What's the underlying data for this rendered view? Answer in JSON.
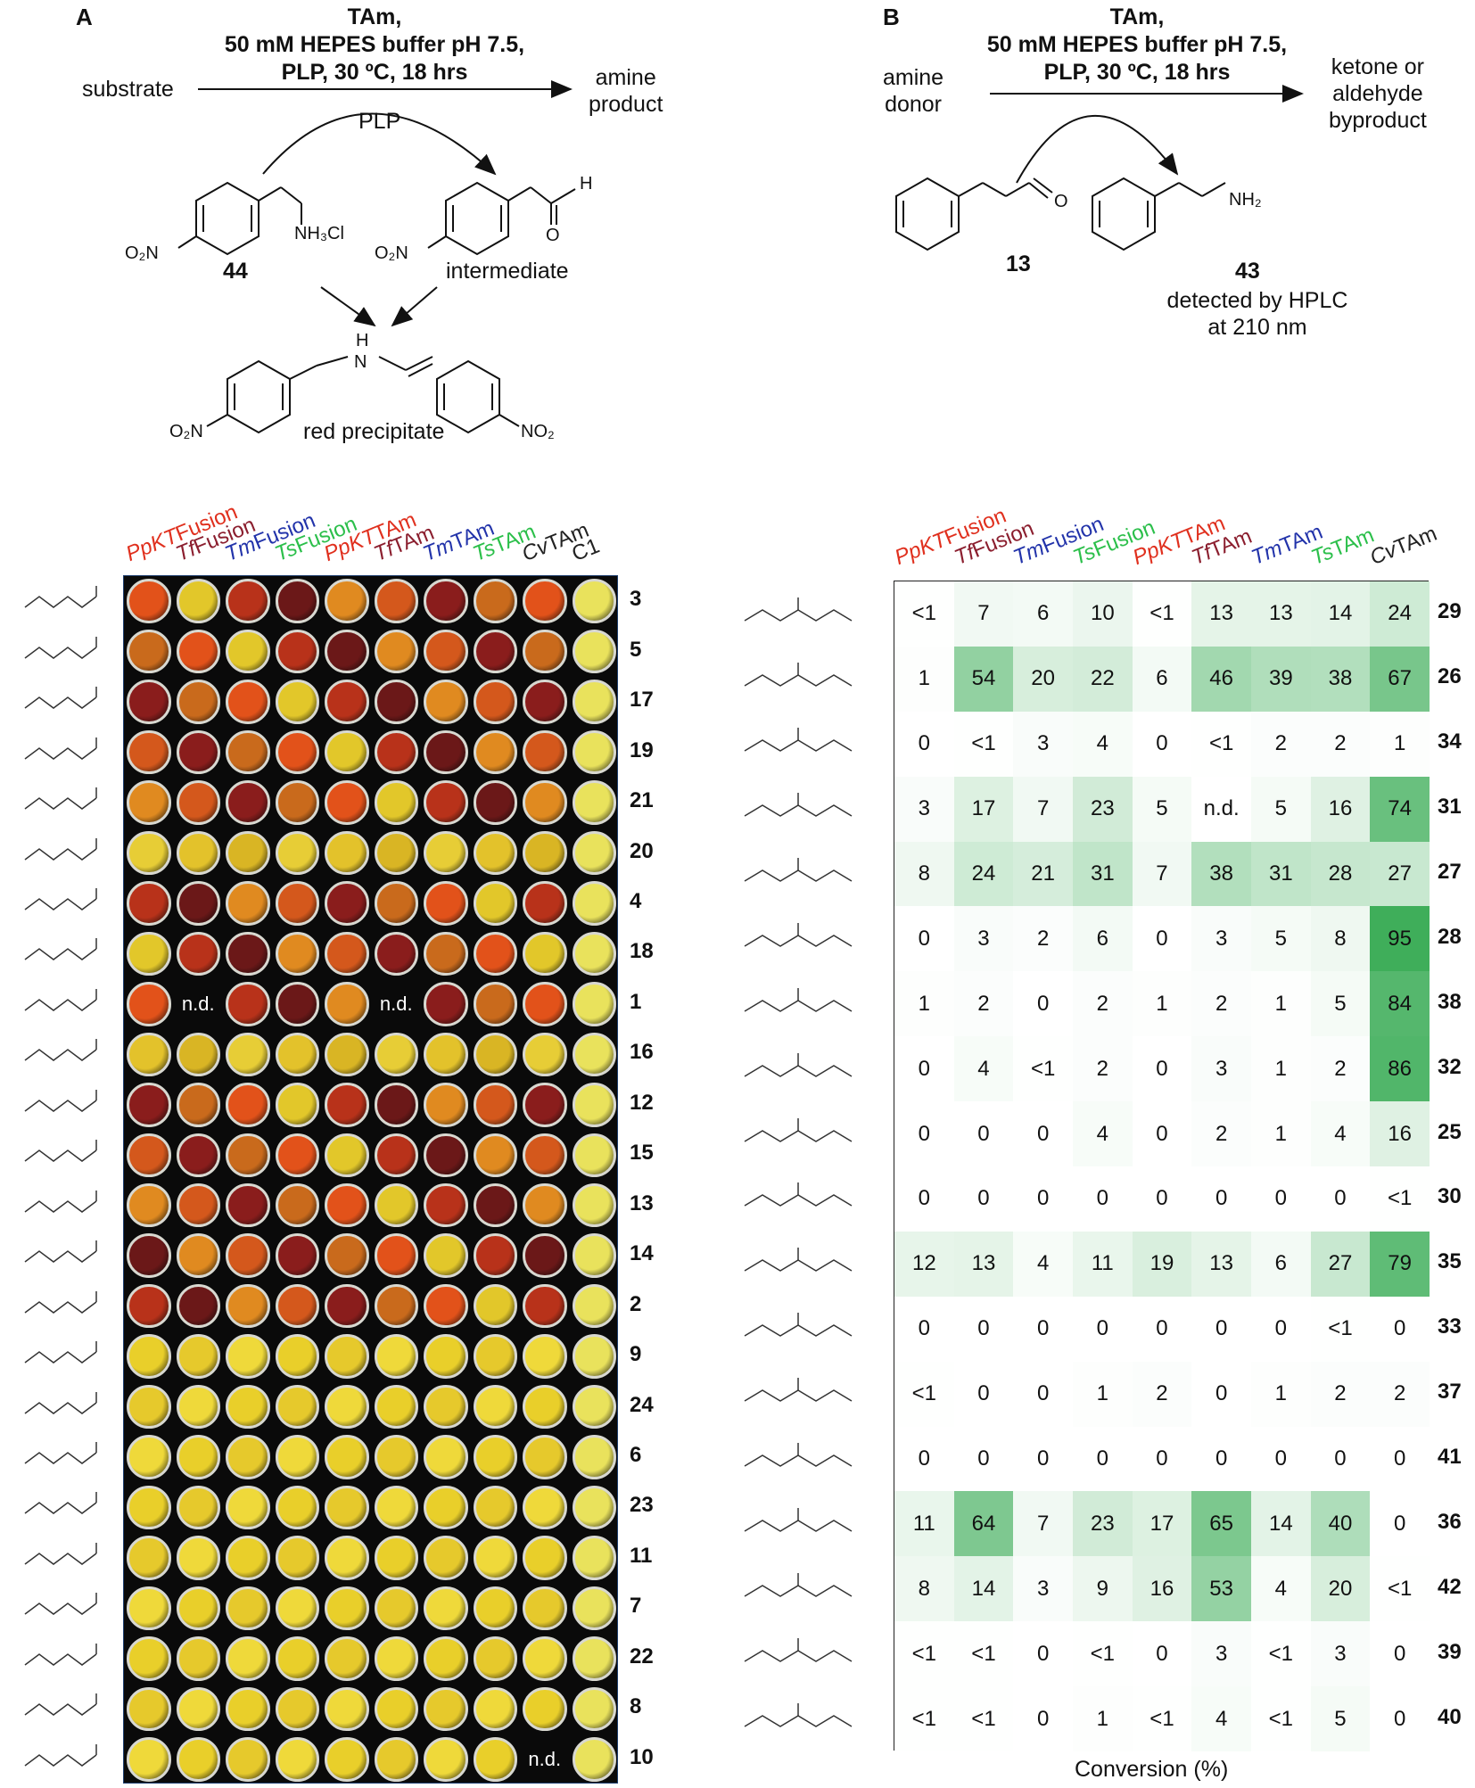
{
  "panelA": {
    "letter": "A",
    "conditions": [
      "TAm,",
      "50 mM HEPES buffer pH 7.5,",
      "PLP, 30 ºC, 18 hrs"
    ],
    "substrate_label": "substrate",
    "product_label": [
      "amine",
      "product"
    ],
    "cofactor_label": "PLP",
    "donor_compound": "44",
    "intermediate_label": "intermediate",
    "precipitate_label": "red precipitate"
  },
  "panelB": {
    "letter": "B",
    "conditions": [
      "TAm,",
      "50 mM HEPES buffer pH 7.5,",
      "PLP, 30 ºC, 18 hrs"
    ],
    "donor_label": [
      "amine",
      "donor"
    ],
    "byproduct_label": [
      "ketone or",
      "aldehyde",
      "byproduct"
    ],
    "acceptor_compound": "13",
    "product_compound": "43",
    "detection_label": [
      "detected by HPLC",
      "at 210 nm"
    ]
  },
  "colors": {
    "red": "#e0301e",
    "maroon": "#8b1e2e",
    "blue": "#2233aa",
    "green": "#2bbf4a",
    "black": "#222222",
    "heat_high": "#3fae5a",
    "plate_bg": "#0a0a0a"
  },
  "plate": {
    "columns": [
      {
        "label": "PpKTFusion",
        "color": "red",
        "italic": "PpKT",
        "rest": "Fusion"
      },
      {
        "label": "TfFusion",
        "color": "maroon",
        "italic": "Tf",
        "rest": "Fusion"
      },
      {
        "label": "TmFusion",
        "color": "blue",
        "italic": "Tm",
        "rest": "Fusion"
      },
      {
        "label": "TsFusion",
        "color": "green",
        "italic": "Ts",
        "rest": "Fusion"
      },
      {
        "label": "PpKTTAm",
        "color": "red",
        "italic": "PpKT",
        "rest": "TAm"
      },
      {
        "label": "TfTAm",
        "color": "maroon",
        "italic": "Tf",
        "rest": "TAm"
      },
      {
        "label": "TmTAm",
        "color": "blue",
        "italic": "Tm",
        "rest": "TAm"
      },
      {
        "label": "TsTAm",
        "color": "green",
        "italic": "Ts",
        "rest": "TAm"
      },
      {
        "label": "CvTAm",
        "color": "black",
        "italic": "Cv",
        "rest": "TAm"
      },
      {
        "label": "C1",
        "color": "black",
        "italic": "",
        "rest": "C1"
      }
    ],
    "rows": [
      "3",
      "5",
      "17",
      "19",
      "21",
      "20",
      "4",
      "18",
      "1",
      "16",
      "12",
      "15",
      "13",
      "14",
      "2",
      "9",
      "24",
      "6",
      "23",
      "11",
      "7",
      "22",
      "8",
      "10"
    ],
    "nd_label": "n.d."
  },
  "chart_data": {
    "type": "heatmap",
    "xlabel": "Conversion (%)",
    "columns": [
      "PpKTFusion",
      "TfFusion",
      "TmFusion",
      "TsFusion",
      "PpKTTAm",
      "TfTAm",
      "TmTAm",
      "TsTAm",
      "CvTAm"
    ],
    "rows": [
      "29",
      "26",
      "34",
      "31",
      "27",
      "28",
      "38",
      "32",
      "25",
      "30",
      "35",
      "33",
      "37",
      "41",
      "36",
      "42",
      "39",
      "40"
    ],
    "cells": [
      [
        "<1",
        "7",
        "6",
        "10",
        "<1",
        "13",
        "13",
        "14",
        "24"
      ],
      [
        "1",
        "54",
        "20",
        "22",
        "6",
        "46",
        "39",
        "38",
        "67"
      ],
      [
        "0",
        "<1",
        "3",
        "4",
        "0",
        "<1",
        "2",
        "2",
        "1"
      ],
      [
        "3",
        "17",
        "7",
        "23",
        "5",
        "n.d.",
        "5",
        "16",
        "74"
      ],
      [
        "8",
        "24",
        "21",
        "31",
        "7",
        "38",
        "31",
        "28",
        "27"
      ],
      [
        "0",
        "3",
        "2",
        "6",
        "0",
        "3",
        "5",
        "8",
        "95"
      ],
      [
        "1",
        "2",
        "0",
        "2",
        "1",
        "2",
        "1",
        "5",
        "84"
      ],
      [
        "0",
        "4",
        "<1",
        "2",
        "0",
        "3",
        "1",
        "2",
        "86"
      ],
      [
        "0",
        "0",
        "0",
        "4",
        "0",
        "2",
        "1",
        "4",
        "16"
      ],
      [
        "0",
        "0",
        "0",
        "0",
        "0",
        "0",
        "0",
        "0",
        "<1"
      ],
      [
        "12",
        "13",
        "4",
        "11",
        "19",
        "13",
        "6",
        "27",
        "79"
      ],
      [
        "0",
        "0",
        "0",
        "0",
        "0",
        "0",
        "0",
        "<1",
        "0"
      ],
      [
        "<1",
        "0",
        "0",
        "1",
        "2",
        "0",
        "1",
        "2",
        "2"
      ],
      [
        "0",
        "0",
        "0",
        "0",
        "0",
        "0",
        "0",
        "0",
        "0"
      ],
      [
        "11",
        "64",
        "7",
        "23",
        "17",
        "65",
        "14",
        "40",
        "0"
      ],
      [
        "8",
        "14",
        "3",
        "9",
        "16",
        "53",
        "4",
        "20",
        "<1"
      ],
      [
        "<1",
        "<1",
        "0",
        "<1",
        "0",
        "3",
        "<1",
        "3",
        "0"
      ],
      [
        "<1",
        "<1",
        "0",
        "1",
        "<1",
        "4",
        "<1",
        "5",
        "0"
      ]
    ]
  }
}
